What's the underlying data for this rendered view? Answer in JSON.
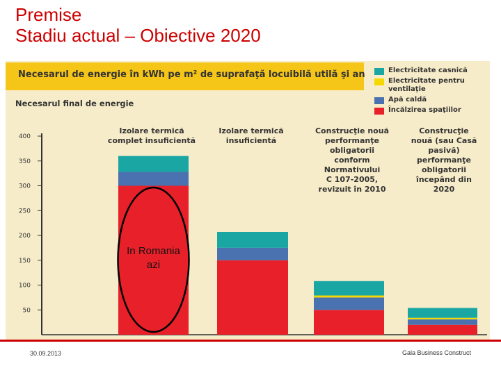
{
  "slide": {
    "title_line1": "Premise",
    "title_line2": "Stadiu actual – Obiective 2020"
  },
  "chart_data": {
    "type": "bar",
    "stacked": true,
    "title": "Necesarul de energie în kWh pe m² de suprafaţă locuibilă utilă şi an",
    "ylabel": "Necesarul final de energie",
    "ylim": [
      0,
      400
    ],
    "yticks": [
      50,
      100,
      150,
      200,
      250,
      300,
      350,
      400
    ],
    "categories": [
      [
        "Izolare termică",
        "complet insuficientă"
      ],
      [
        "Izolare termică",
        "insuficientă"
      ],
      [
        "Construcţie nouă",
        "performanţe",
        "obligatorii",
        "conform",
        "Normativului",
        "C 107-2005,",
        "revizuit în 2010"
      ],
      [
        "Construcţie",
        "nouă (sau Casă",
        "pasivă)",
        "performanţe",
        "obligatorii",
        "începând din",
        "2020"
      ]
    ],
    "series": [
      {
        "name": "Încălzirea spaţiilor",
        "color": "#e8202a",
        "values": [
          300,
          150,
          50,
          20
        ]
      },
      {
        "name": "Apă caldă",
        "color": "#4a72b0",
        "values": [
          28,
          25,
          25,
          11
        ]
      },
      {
        "name": "Electricitate pentru ventilaţie",
        "color": "#f5d800",
        "values": [
          0,
          0,
          4,
          3
        ]
      },
      {
        "name": "Electricitate casnică",
        "color": "#1aa7a4",
        "values": [
          32,
          32,
          29,
          20
        ]
      }
    ],
    "annotation": {
      "text_line1": "In Romania",
      "text_line2": "azi",
      "target_category": 0
    },
    "legend_position": "top-right",
    "grid": false
  },
  "legend": [
    {
      "label_line1": "Electricitate casnică",
      "label_line2": "",
      "color": "#1aa7a4"
    },
    {
      "label_line1": "Electricitate pentru",
      "label_line2": "ventilaţie",
      "color": "#f5d800"
    },
    {
      "label_line1": "Apă caldă",
      "label_line2": "",
      "color": "#4a72b0"
    },
    {
      "label_line1": "Încălzirea spaţiilor",
      "label_line2": "",
      "color": "#e8202a"
    }
  ],
  "footer": {
    "date": "30.09.2013",
    "company": "Gala Business Construct"
  }
}
